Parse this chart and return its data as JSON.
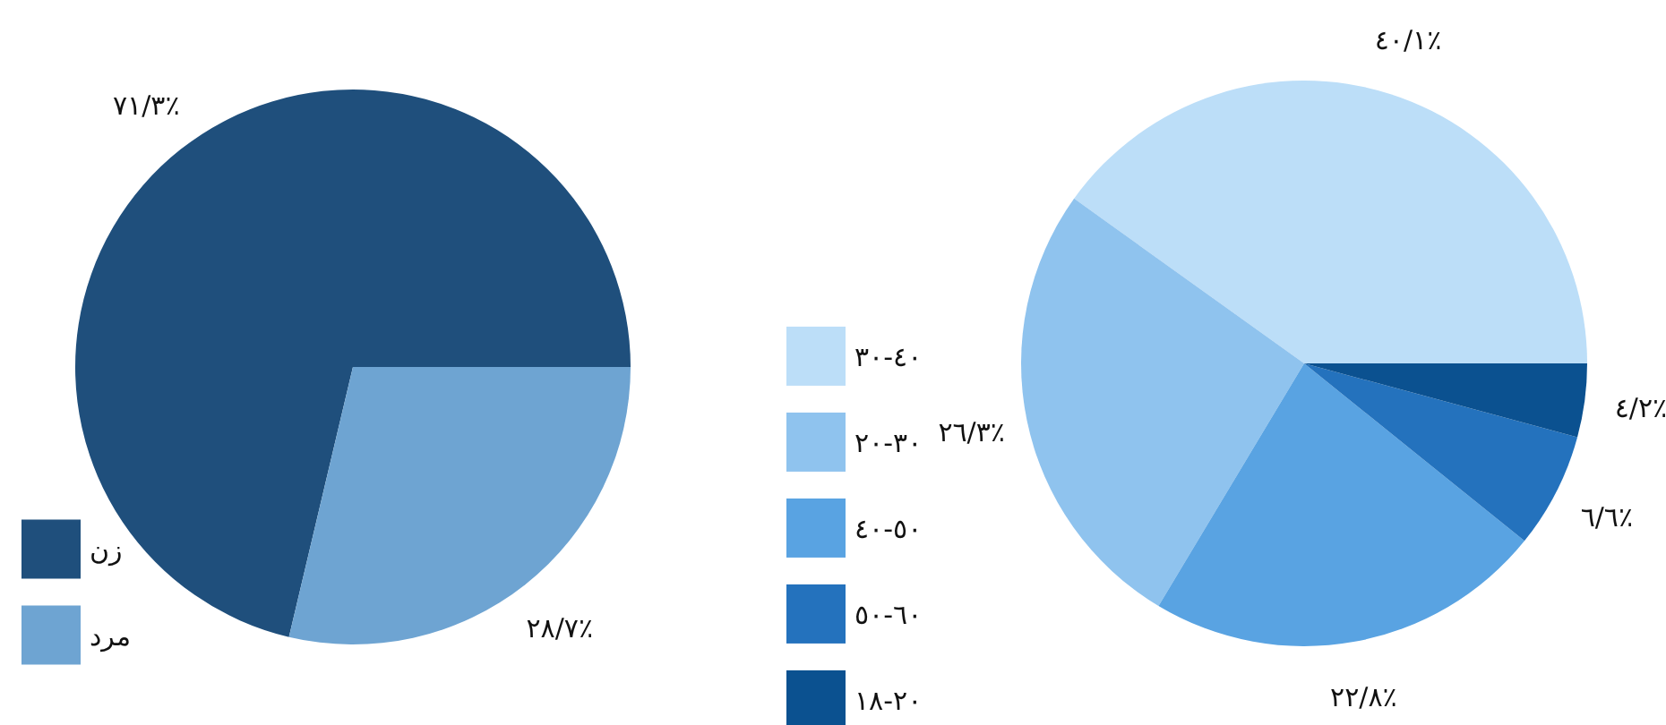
{
  "chart_data": [
    {
      "type": "pie",
      "categories": [
        "زن",
        "مرد"
      ],
      "values": [
        71.3,
        28.7
      ],
      "colors": [
        "#1f4f7c",
        "#6ea4d2"
      ],
      "value_labels": [
        "٪٧١/٣",
        "٪٢٨/٧"
      ],
      "legend": "bottom left"
    },
    {
      "type": "pie",
      "categories": [
        "٤٠-٣٠",
        "٣٠-٢٠",
        "٥٠-٤٠",
        "٦٠-٥٠",
        "٢٠-١٨"
      ],
      "values": [
        40.1,
        26.3,
        22.8,
        6.6,
        4.2
      ],
      "colors": [
        "#bcdef8",
        "#8fc3ee",
        "#59a3e2",
        "#2472bd",
        "#0b5190"
      ],
      "value_labels": [
        "٪٤٠/١",
        "٪٢٦/٣",
        "٪٢٢/٨",
        "٪٦/٦",
        "٪٤/٢"
      ],
      "legend": "left"
    }
  ]
}
